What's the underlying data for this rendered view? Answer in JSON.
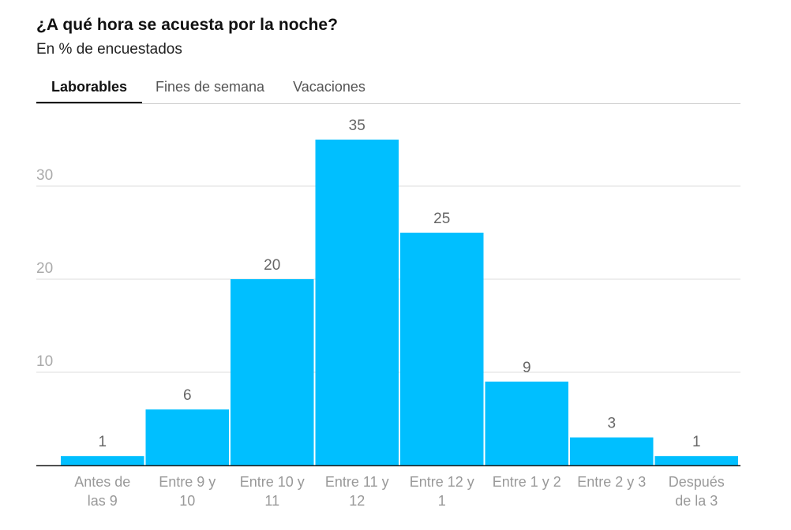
{
  "header": {
    "title": "¿A qué hora se acuesta por la noche?",
    "subtitle": "En % de encuestados"
  },
  "tabs": [
    {
      "label": "Laborables",
      "active": true
    },
    {
      "label": "Fines de semana",
      "active": false
    },
    {
      "label": "Vacaciones",
      "active": false
    }
  ],
  "colors": {
    "bar": "#00bfff",
    "grid": "#dddddd",
    "axis": "#222222",
    "tick_text": "#aaaaaa",
    "value_text": "#666666",
    "category_text": "#999999"
  },
  "chart_data": {
    "type": "bar",
    "title": "¿A qué hora se acuesta por la noche?",
    "subtitle": "En % de encuestados",
    "categories": [
      [
        "Antes de",
        "las 9"
      ],
      [
        "Entre 9 y",
        "10"
      ],
      [
        "Entre 10 y",
        "11"
      ],
      [
        "Entre 11 y",
        "12"
      ],
      [
        "Entre 12 y",
        "1"
      ],
      [
        "Entre 1 y 2"
      ],
      [
        "Entre 2 y 3"
      ],
      [
        "Después",
        "de la 3"
      ]
    ],
    "values": [
      1,
      6,
      20,
      35,
      25,
      9,
      3,
      1
    ],
    "value_labels": [
      "1",
      "6",
      "20",
      "35",
      "25",
      "9",
      "3",
      "1"
    ],
    "yticks": [
      10,
      20,
      30
    ],
    "ytick_labels": [
      "10",
      "20",
      "30"
    ],
    "ylim": [
      0,
      35
    ],
    "grid": true,
    "xlabel": "",
    "ylabel": ""
  }
}
